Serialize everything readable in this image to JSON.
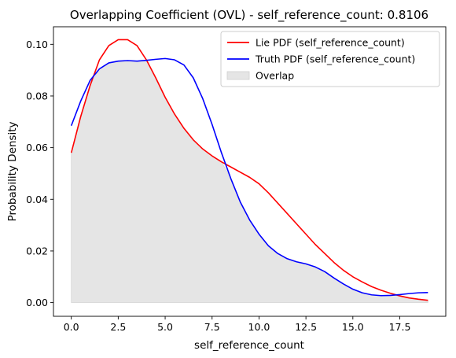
{
  "chart_data": {
    "type": "line",
    "title": "Overlapping Coefficient (OVL) - self_reference_count: 0.8106",
    "xlabel": "self_reference_count",
    "ylabel": "Probability Density",
    "xlim": [
      -0.95,
      19.95
    ],
    "ylim": [
      -0.0053,
      0.1068
    ],
    "xticks": [
      0.0,
      2.5,
      5.0,
      7.5,
      10.0,
      12.5,
      15.0,
      17.5
    ],
    "xtick_labels": [
      "0.0",
      "2.5",
      "5.0",
      "7.5",
      "10.0",
      "12.5",
      "15.0",
      "17.5"
    ],
    "yticks": [
      0.0,
      0.02,
      0.04,
      0.06,
      0.08,
      0.1
    ],
    "ytick_labels": [
      "0.00",
      "0.02",
      "0.04",
      "0.06",
      "0.08",
      "0.10"
    ],
    "grid": false,
    "legend_position": "top-right",
    "x": [
      0,
      0.5,
      1,
      1.5,
      2,
      2.5,
      3,
      3.5,
      4,
      4.5,
      5,
      5.5,
      6,
      6.5,
      7,
      7.5,
      8,
      8.5,
      9,
      9.5,
      10,
      10.5,
      11,
      11.5,
      12,
      12.5,
      13,
      13.5,
      14,
      14.5,
      15,
      15.5,
      16,
      16.5,
      17,
      17.5,
      18,
      18.5,
      19
    ],
    "series": [
      {
        "name": "Lie PDF (self_reference_count)",
        "color": "#ff0000",
        "values": [
          0.058,
          0.072,
          0.084,
          0.094,
          0.0995,
          0.1018,
          0.1018,
          0.0995,
          0.094,
          0.087,
          0.0795,
          0.073,
          0.0675,
          0.063,
          0.0595,
          0.0568,
          0.0545,
          0.0525,
          0.0505,
          0.0485,
          0.046,
          0.0425,
          0.0385,
          0.0345,
          0.0305,
          0.0265,
          0.0225,
          0.019,
          0.0155,
          0.0125,
          0.01,
          0.008,
          0.0062,
          0.0048,
          0.0036,
          0.0026,
          0.0018,
          0.0013,
          0.0009
        ]
      },
      {
        "name": "Truth PDF (self_reference_count)",
        "color": "#0000ff",
        "values": [
          0.0685,
          0.078,
          0.086,
          0.0905,
          0.0928,
          0.0935,
          0.0937,
          0.0935,
          0.0938,
          0.0942,
          0.0945,
          0.094,
          0.092,
          0.087,
          0.079,
          0.069,
          0.058,
          0.048,
          0.039,
          0.032,
          0.0265,
          0.022,
          0.019,
          0.017,
          0.0158,
          0.015,
          0.0138,
          0.012,
          0.0095,
          0.0072,
          0.0052,
          0.0038,
          0.003,
          0.0027,
          0.0028,
          0.0031,
          0.0035,
          0.0038,
          0.0039
        ]
      }
    ],
    "overlap": {
      "name": "Overlap",
      "color": "#e5e5e5"
    }
  }
}
